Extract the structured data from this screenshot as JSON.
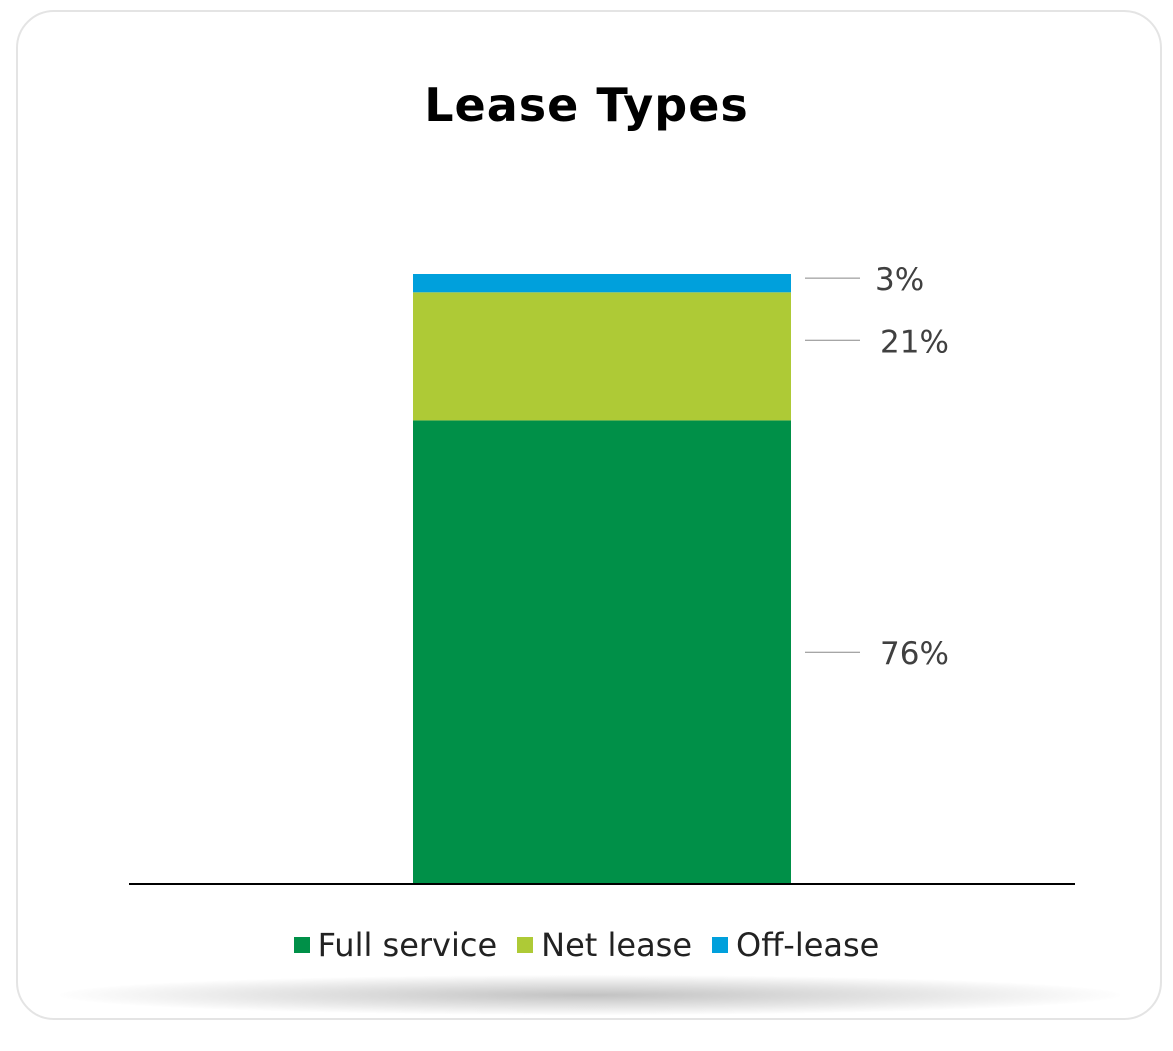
{
  "colors": {
    "full_service": "#009048",
    "net_lease": "#aeca36",
    "off_lease": "#00a0dc"
  },
  "chart_data": {
    "type": "bar",
    "stacked": true,
    "title": "Lease Types",
    "categories": [
      ""
    ],
    "series": [
      {
        "name": "Full service",
        "values": [
          76
        ],
        "label": "76%"
      },
      {
        "name": "Net lease",
        "values": [
          21
        ],
        "label": "21%"
      },
      {
        "name": "Off-lease",
        "values": [
          3
        ],
        "label": "3%"
      }
    ],
    "ylim": [
      0,
      100
    ],
    "grid": false,
    "legend_position": "bottom"
  }
}
